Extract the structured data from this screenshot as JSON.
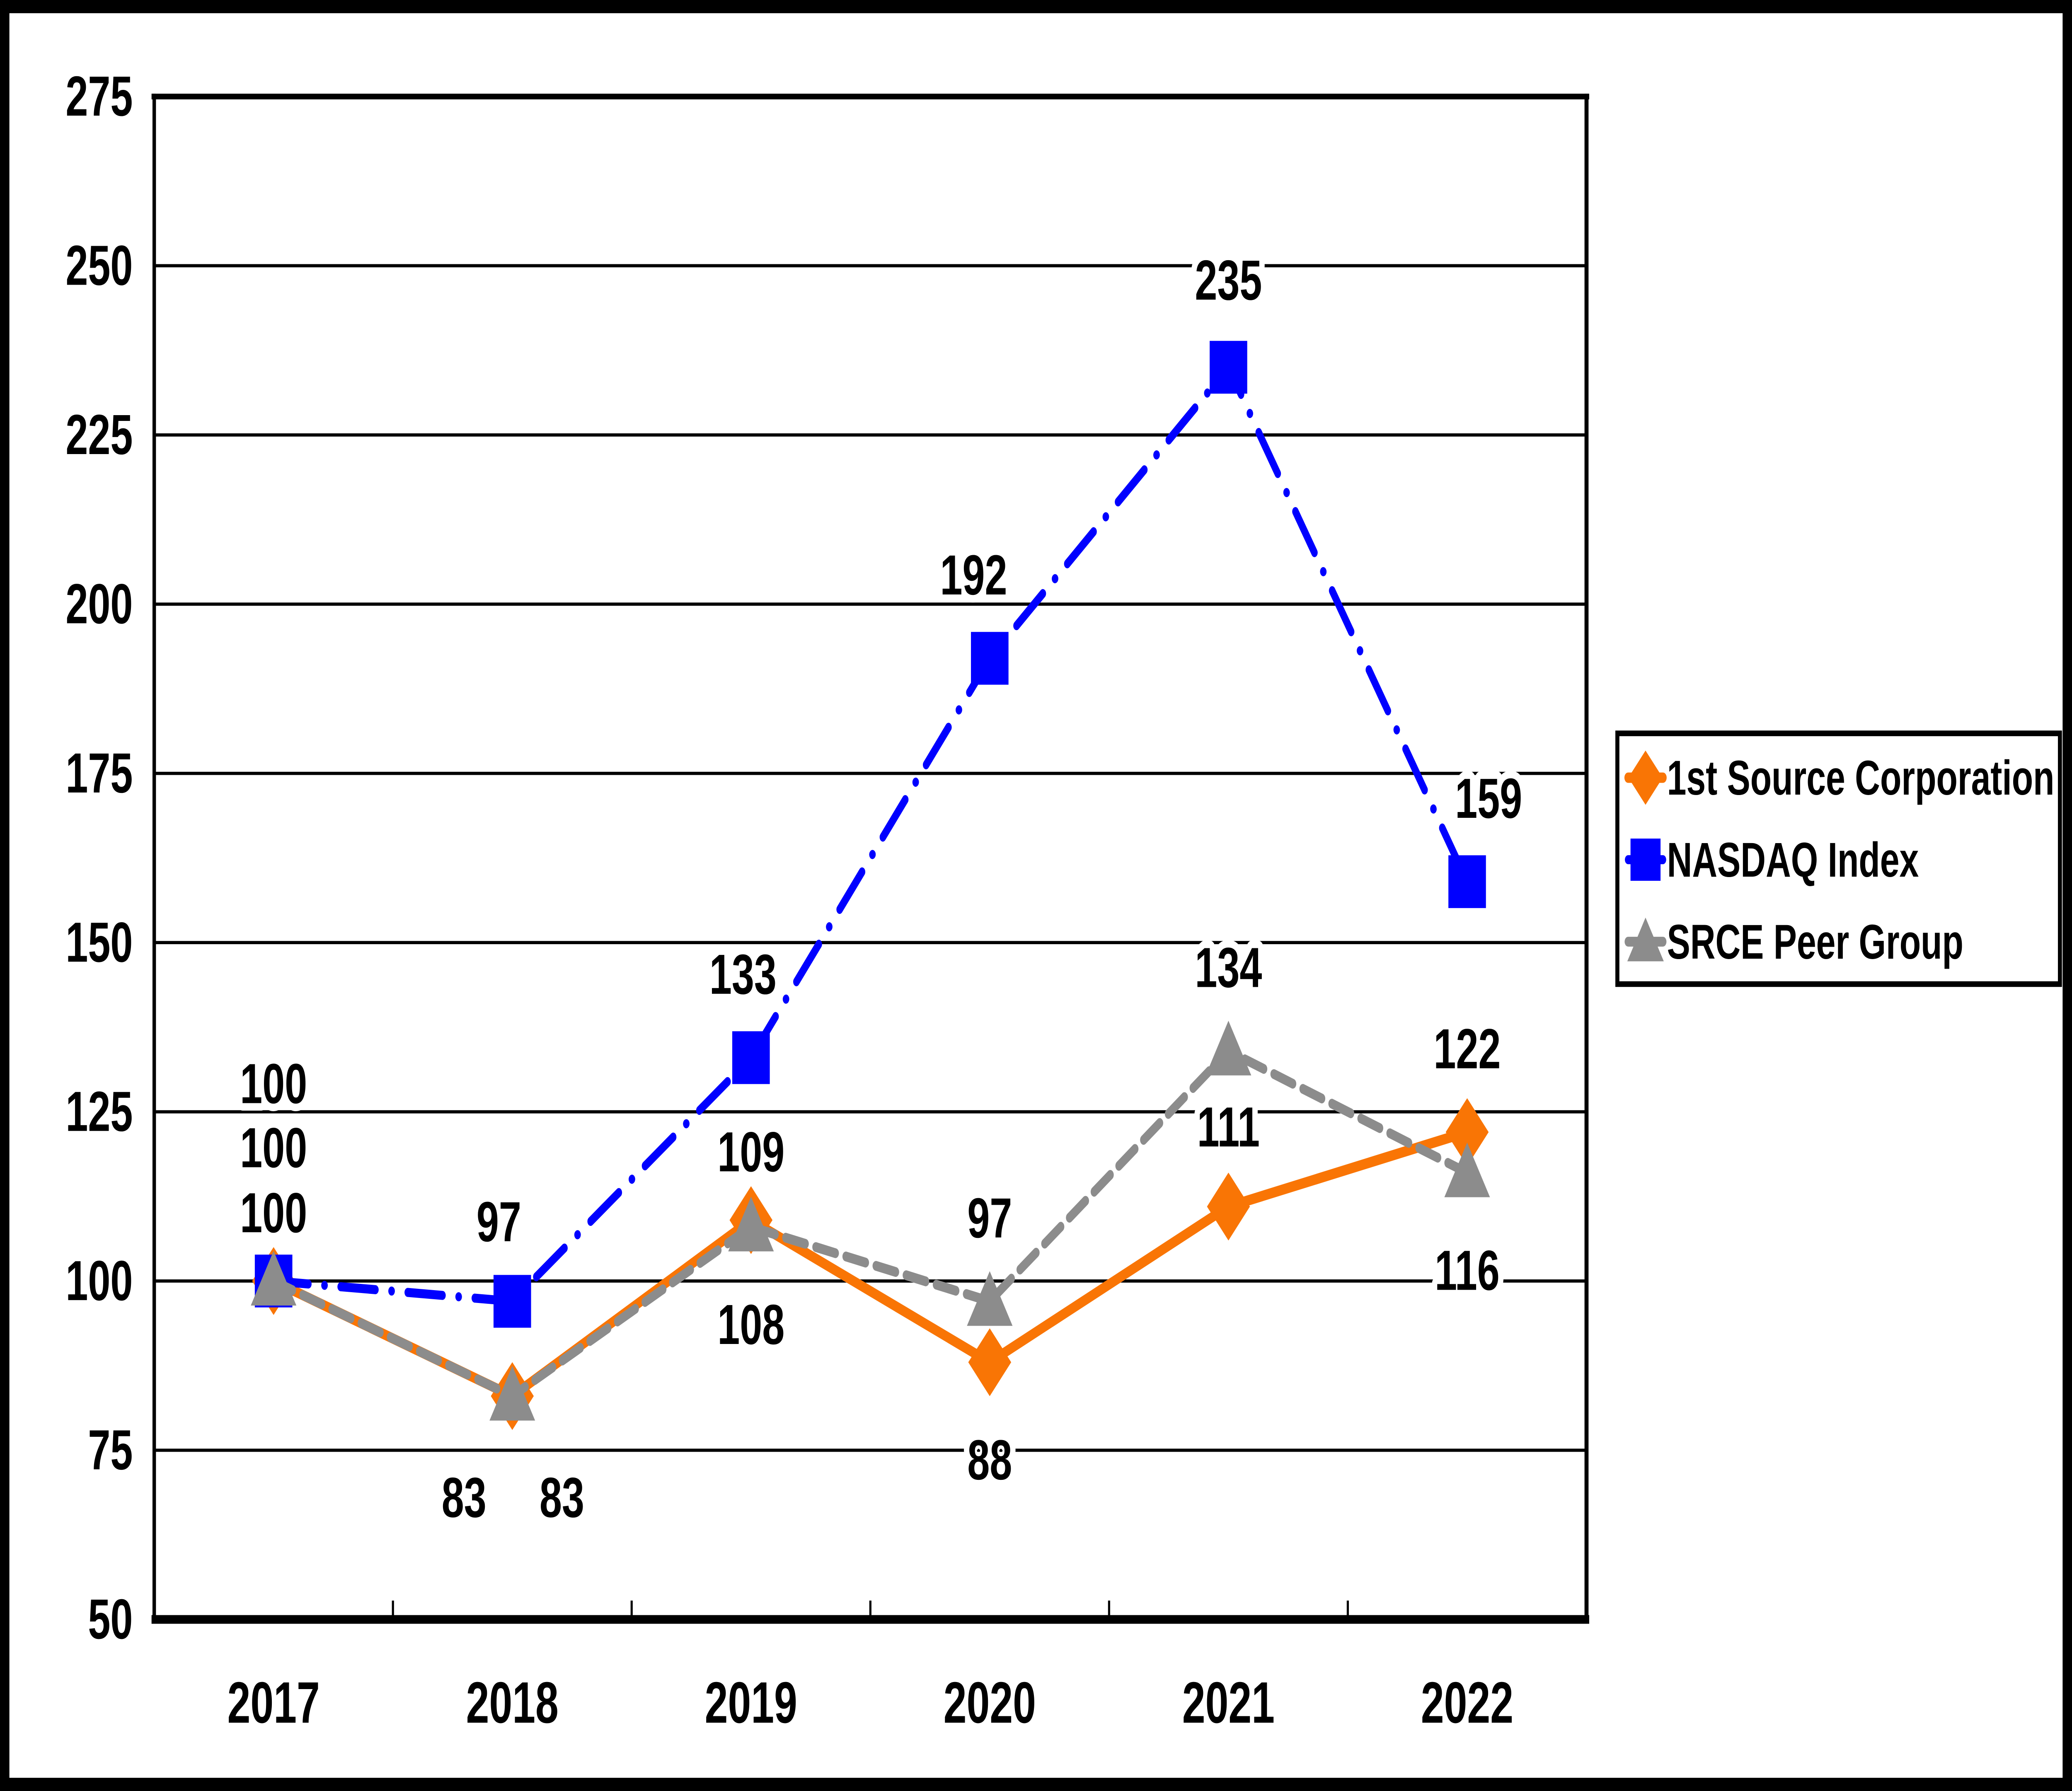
{
  "chart_data": {
    "type": "line",
    "categories": [
      "2017",
      "2018",
      "2019",
      "2020",
      "2021",
      "2022"
    ],
    "series": [
      {
        "name": "1st Source Corporation",
        "color": "#F97505",
        "line_style": "solid",
        "marker": "diamond",
        "values": [
          100,
          83,
          109,
          88,
          111,
          122
        ],
        "data_labels": [
          "100",
          "83",
          "109",
          "88",
          "111",
          "122"
        ],
        "label_offsets": [
          [
            0,
            -36
          ],
          [
            -36,
            54
          ],
          [
            0,
            -36
          ],
          [
            0,
            52
          ],
          [
            0,
            -42
          ],
          [
            0,
            -44
          ]
        ]
      },
      {
        "name": "NASDAQ Index",
        "color": "#0000FF",
        "line_style": "dash-dot",
        "marker": "square",
        "values": [
          100,
          97,
          133,
          192,
          235,
          159
        ],
        "data_labels": [
          "100",
          "97",
          "133",
          "192",
          "235",
          "159"
        ],
        "label_offsets": [
          [
            0,
            -70.5
          ],
          [
            -10,
            -42
          ],
          [
            -6,
            -44
          ],
          [
            -12,
            -44
          ],
          [
            0,
            -46
          ],
          [
            16,
            -44
          ]
        ]
      },
      {
        "name": "SRCE Peer Group",
        "color": "#8C8C8C",
        "line_style": "dashed",
        "marker": "triangle",
        "values": [
          100,
          83,
          108,
          97,
          134,
          116
        ],
        "data_labels": [
          "100",
          "83",
          "108",
          "97",
          "134",
          "116"
        ],
        "label_offsets": [
          [
            0,
            -104.5
          ],
          [
            37,
            54
          ],
          [
            0,
            52
          ],
          [
            0,
            -44
          ],
          [
            0,
            -44
          ],
          [
            0,
            52
          ]
        ]
      }
    ],
    "ylim": [
      50,
      275
    ],
    "ytick_interval": 25,
    "yticks": [
      50,
      75,
      100,
      125,
      150,
      175,
      200,
      225,
      250,
      275
    ],
    "ytick_labels": [
      "50",
      "75",
      "100",
      "125",
      "150",
      "175",
      "200",
      "225",
      "250",
      "275"
    ],
    "xlabel": "",
    "ylabel": "",
    "title": "",
    "grid": "horizontal",
    "grid_color": "#000000",
    "axis_color": "#000000",
    "background_color": "#FFFFFF",
    "frame_color": "#000000",
    "legend_position": "right-middle",
    "legend_border_color": "#000000"
  }
}
